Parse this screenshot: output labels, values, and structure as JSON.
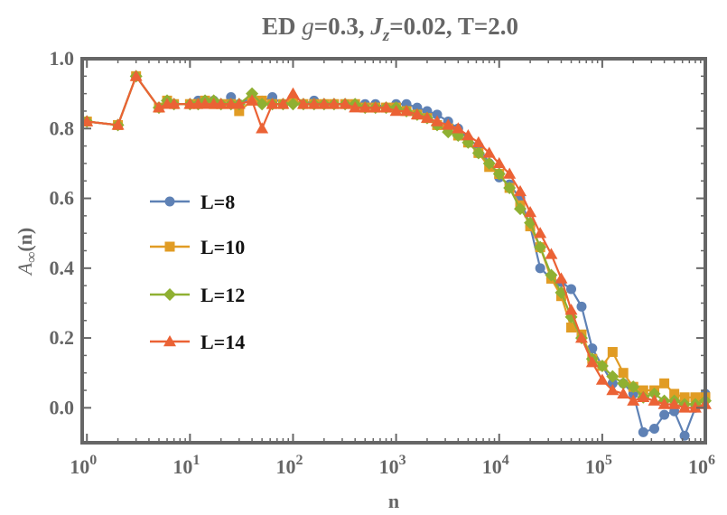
{
  "chart_data": {
    "type": "line",
    "title": {
      "prefix": "ED ",
      "g_symbol": "g",
      "g_value": "=0.3, ",
      "j_symbol": "J",
      "j_sub": "z",
      "j_value": "=0.02, T=2.0"
    },
    "xlabel": "n",
    "ylabel": {
      "main": "A",
      "sub": "∞",
      "arg": "(n)"
    },
    "x_scale": "log",
    "xlim": [
      0.9,
      1000000
    ],
    "ylim": [
      -0.1,
      1.0
    ],
    "xticks": [
      {
        "value": 1,
        "base": "10",
        "exp": "0"
      },
      {
        "value": 10,
        "base": "10",
        "exp": "1"
      },
      {
        "value": 100,
        "base": "10",
        "exp": "2"
      },
      {
        "value": 1000,
        "base": "10",
        "exp": "3"
      },
      {
        "value": 10000,
        "base": "10",
        "exp": "4"
      },
      {
        "value": 100000,
        "base": "10",
        "exp": "5"
      },
      {
        "value": 1000000,
        "base": "10",
        "exp": "6"
      }
    ],
    "yticks": [
      {
        "value": 0.0,
        "label": "0.0"
      },
      {
        "value": 0.2,
        "label": "0.2"
      },
      {
        "value": 0.4,
        "label": "0.4"
      },
      {
        "value": 0.6,
        "label": "0.6"
      },
      {
        "value": 0.8,
        "label": "0.8"
      },
      {
        "value": 1.0,
        "label": "1.0"
      }
    ],
    "legend_position": "center-left",
    "grid": false,
    "series": [
      {
        "name": "L=8",
        "color": "#5E81B5",
        "marker": "circle",
        "x": [
          1,
          2,
          3,
          5,
          6,
          7,
          10,
          12,
          14,
          17,
          20,
          25,
          30,
          40,
          50,
          63,
          80,
          100,
          126,
          160,
          200,
          250,
          320,
          400,
          500,
          630,
          800,
          1000,
          1260,
          1600,
          2000,
          2500,
          3200,
          4000,
          5000,
          6300,
          8000,
          10000,
          12600,
          16000,
          20000,
          25000,
          32000,
          40000,
          50000,
          63000,
          80000,
          100000,
          126000,
          160000,
          200000,
          250000,
          320000,
          400000,
          500000,
          630000,
          800000,
          1000000
        ],
        "y": [
          0.82,
          0.81,
          0.95,
          0.86,
          0.88,
          0.87,
          0.87,
          0.88,
          0.88,
          0.88,
          0.87,
          0.89,
          0.87,
          0.89,
          0.88,
          0.89,
          0.87,
          0.88,
          0.87,
          0.88,
          0.87,
          0.87,
          0.87,
          0.87,
          0.87,
          0.87,
          0.86,
          0.87,
          0.87,
          0.86,
          0.85,
          0.84,
          0.82,
          0.8,
          0.77,
          0.75,
          0.7,
          0.66,
          0.64,
          0.6,
          0.52,
          0.4,
          0.37,
          0.36,
          0.34,
          0.29,
          0.17,
          0.12,
          0.07,
          0.07,
          0.04,
          -0.07,
          -0.06,
          -0.02,
          -0.01,
          -0.08,
          0.0,
          0.04
        ]
      },
      {
        "name": "L=10",
        "color": "#E19C24",
        "marker": "square",
        "x": [
          1,
          2,
          3,
          5,
          6,
          7,
          10,
          12,
          14,
          17,
          20,
          25,
          30,
          40,
          50,
          63,
          80,
          100,
          126,
          160,
          200,
          250,
          320,
          400,
          500,
          630,
          800,
          1000,
          1260,
          1600,
          2000,
          2500,
          3200,
          4000,
          5000,
          6300,
          8000,
          10000,
          12600,
          16000,
          20000,
          25000,
          32000,
          40000,
          50000,
          63000,
          80000,
          100000,
          126000,
          160000,
          200000,
          250000,
          320000,
          400000,
          500000,
          630000,
          800000,
          1000000
        ],
        "y": [
          0.82,
          0.81,
          0.95,
          0.86,
          0.88,
          0.87,
          0.87,
          0.87,
          0.88,
          0.87,
          0.87,
          0.87,
          0.85,
          0.88,
          0.88,
          0.87,
          0.87,
          0.88,
          0.87,
          0.87,
          0.87,
          0.87,
          0.87,
          0.87,
          0.86,
          0.86,
          0.86,
          0.86,
          0.85,
          0.84,
          0.83,
          0.81,
          0.8,
          0.78,
          0.76,
          0.73,
          0.69,
          0.67,
          0.63,
          0.58,
          0.52,
          0.46,
          0.37,
          0.32,
          0.23,
          0.21,
          0.14,
          0.12,
          0.16,
          0.1,
          0.06,
          0.05,
          0.05,
          0.07,
          0.04,
          0.03,
          0.03,
          0.03
        ]
      },
      {
        "name": "L=12",
        "color": "#8FB032",
        "marker": "diamond",
        "x": [
          1,
          2,
          3,
          5,
          6,
          7,
          10,
          12,
          14,
          17,
          20,
          25,
          30,
          40,
          50,
          63,
          80,
          100,
          126,
          160,
          200,
          250,
          320,
          400,
          500,
          630,
          800,
          1000,
          1260,
          1600,
          2000,
          2500,
          3200,
          4000,
          5000,
          6300,
          8000,
          10000,
          12600,
          16000,
          20000,
          25000,
          32000,
          40000,
          50000,
          63000,
          80000,
          100000,
          126000,
          160000,
          200000,
          250000,
          320000,
          400000,
          500000,
          630000,
          800000,
          1000000
        ],
        "y": [
          0.82,
          0.81,
          0.95,
          0.86,
          0.88,
          0.87,
          0.87,
          0.87,
          0.88,
          0.88,
          0.87,
          0.87,
          0.87,
          0.9,
          0.87,
          0.87,
          0.87,
          0.87,
          0.87,
          0.87,
          0.87,
          0.87,
          0.87,
          0.87,
          0.86,
          0.86,
          0.86,
          0.86,
          0.85,
          0.84,
          0.83,
          0.81,
          0.79,
          0.78,
          0.76,
          0.73,
          0.7,
          0.67,
          0.63,
          0.57,
          0.53,
          0.46,
          0.38,
          0.33,
          0.26,
          0.2,
          0.14,
          0.12,
          0.09,
          0.07,
          0.06,
          0.03,
          0.04,
          0.02,
          0.02,
          0.01,
          0.01,
          0.02
        ]
      },
      {
        "name": "L=14",
        "color": "#EB6235",
        "marker": "triangle",
        "x": [
          1,
          2,
          3,
          5,
          6,
          7,
          10,
          12,
          14,
          17,
          20,
          25,
          30,
          40,
          50,
          63,
          80,
          100,
          126,
          160,
          200,
          250,
          320,
          400,
          500,
          630,
          800,
          1000,
          1260,
          1600,
          2000,
          2500,
          3200,
          4000,
          5000,
          6300,
          8000,
          10000,
          12600,
          16000,
          20000,
          25000,
          32000,
          40000,
          50000,
          63000,
          80000,
          100000,
          126000,
          160000,
          200000,
          250000,
          320000,
          400000,
          500000,
          630000,
          800000,
          1000000
        ],
        "y": [
          0.82,
          0.81,
          0.95,
          0.86,
          0.87,
          0.87,
          0.87,
          0.87,
          0.87,
          0.87,
          0.87,
          0.87,
          0.87,
          0.88,
          0.8,
          0.87,
          0.87,
          0.9,
          0.87,
          0.87,
          0.87,
          0.87,
          0.87,
          0.86,
          0.86,
          0.86,
          0.86,
          0.85,
          0.85,
          0.84,
          0.83,
          0.82,
          0.81,
          0.8,
          0.78,
          0.76,
          0.73,
          0.7,
          0.67,
          0.62,
          0.56,
          0.5,
          0.44,
          0.37,
          0.28,
          0.2,
          0.13,
          0.08,
          0.05,
          0.04,
          0.02,
          0.03,
          0.02,
          0.01,
          0.01,
          0.0,
          0.0,
          0.01
        ]
      }
    ]
  }
}
